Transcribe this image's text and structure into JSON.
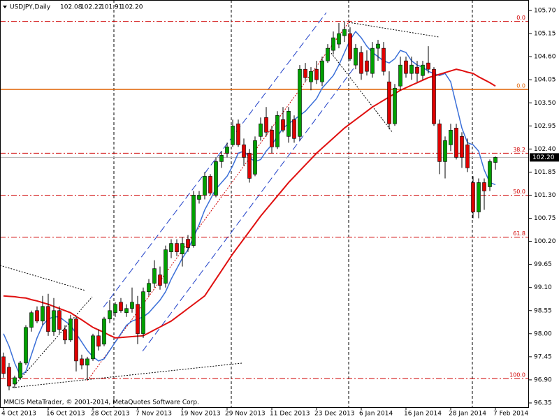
{
  "chart_data": {
    "type": "candlestick",
    "title": "USDJPY,Daily",
    "header_values": [
      "102.08",
      "102.22",
      "101.91",
      "102.20"
    ],
    "footer": "MMCIS MetaTrader, © 2001-2014, MetaQuotes Software Corp.",
    "up_color": "#00a000",
    "down_color": "#e00000",
    "categories": [
      "4 Oct 2013",
      null,
      null,
      null,
      null,
      null,
      null,
      null,
      "16 Oct 2013",
      null,
      null,
      null,
      null,
      null,
      null,
      null,
      "28 Oct 2013",
      null,
      null,
      null,
      null,
      null,
      null,
      null,
      "7 Nov 2013",
      null,
      null,
      null,
      null,
      null,
      null,
      null,
      "19 Nov 2013",
      null,
      null,
      null,
      null,
      null,
      null,
      null,
      "29 Nov 2013",
      null,
      null,
      null,
      null,
      null,
      null,
      null,
      "11 Dec 2013",
      null,
      null,
      null,
      null,
      null,
      null,
      null,
      "23 Dec 2013",
      null,
      null,
      null,
      null,
      null,
      null,
      null,
      "6 Jan 2014",
      null,
      null,
      null,
      null,
      null,
      null,
      null,
      "16 Jan 2014",
      null,
      null,
      null,
      null,
      null,
      null,
      null,
      "28 Jan 2014",
      null,
      null,
      null,
      null,
      null,
      null,
      null,
      "7 Feb 2014"
    ],
    "open": [
      97.45,
      97.2,
      96.8,
      96.95,
      97.3,
      98.15,
      98.55,
      98.3,
      98.65,
      98.05,
      98.55,
      98.1,
      97.85,
      98.35,
      97.4,
      97.25,
      97.4,
      97.95,
      97.75,
      98.35,
      98.5,
      98.75,
      98.5,
      98.6,
      98.7,
      98.0,
      99.0,
      99.2,
      99.4,
      99.2,
      99.95,
      100.15,
      99.9,
      100.25,
      100.1,
      101.2,
      101.3,
      101.75,
      101.3,
      102.1,
      102.3,
      102.5,
      103.0,
      102.5,
      102.3,
      101.8,
      102.7,
      103.15,
      102.85,
      102.45,
      103.1,
      102.7,
      103.1,
      102.7,
      104.3,
      104.0,
      104.3,
      104.0,
      104.5,
      104.75,
      104.9,
      105.1,
      105.15,
      104.4,
      104.7,
      104.5,
      104.2,
      104.8,
      104.8,
      104.0,
      103.0,
      103.9,
      104.5,
      104.2,
      104.35,
      104.15,
      104.45,
      104.3,
      103.0,
      102.1,
      102.5,
      102.9,
      102.7,
      102.5,
      101.6,
      100.9,
      101.6,
      101.5,
      102.08
    ],
    "high": [
      97.55,
      97.3,
      97.0,
      97.35,
      98.2,
      98.55,
      98.65,
      98.9,
      98.95,
      98.85,
      98.65,
      98.2,
      98.45,
      98.4,
      97.5,
      97.45,
      98.0,
      98.1,
      98.4,
      98.8,
      98.75,
      98.85,
      98.7,
      99.1,
      98.9,
      99.1,
      99.3,
      99.75,
      99.6,
      100.1,
      100.25,
      100.25,
      100.3,
      100.35,
      101.4,
      101.4,
      101.85,
      101.8,
      102.2,
      102.35,
      102.55,
      103.1,
      103.1,
      102.65,
      102.4,
      102.7,
      103.15,
      103.4,
      102.95,
      103.3,
      103.4,
      103.4,
      103.2,
      104.4,
      104.45,
      104.35,
      104.5,
      104.6,
      104.9,
      105.2,
      105.4,
      105.44,
      105.3,
      104.9,
      104.85,
      104.75,
      104.95,
      105.0,
      104.95,
      104.25,
      103.95,
      104.6,
      104.6,
      104.6,
      104.5,
      104.5,
      104.85,
      104.35,
      103.1,
      102.7,
      103.0,
      103.0,
      102.8,
      102.65,
      101.75,
      101.7,
      101.7,
      102.15,
      102.22
    ],
    "low": [
      96.95,
      96.65,
      96.7,
      96.9,
      97.25,
      98.05,
      98.25,
      98.2,
      97.95,
      97.95,
      98.0,
      97.75,
      97.8,
      97.1,
      97.15,
      96.9,
      97.35,
      97.6,
      97.7,
      98.25,
      98.4,
      98.5,
      98.4,
      98.5,
      97.75,
      97.9,
      98.9,
      99.1,
      99.05,
      99.1,
      99.8,
      99.85,
      99.6,
      99.95,
      100.05,
      101.1,
      101.2,
      101.3,
      101.25,
      101.95,
      102.2,
      102.45,
      102.45,
      102.0,
      101.6,
      101.75,
      102.6,
      102.7,
      102.3,
      102.4,
      102.8,
      102.55,
      102.55,
      102.6,
      104.0,
      103.8,
      103.95,
      103.9,
      104.45,
      104.65,
      104.8,
      104.95,
      104.5,
      104.3,
      104.05,
      104.15,
      104.1,
      104.5,
      104.15,
      102.87,
      102.95,
      103.8,
      104.1,
      104.05,
      104.0,
      104.05,
      104.2,
      102.95,
      101.8,
      101.7,
      102.35,
      102.15,
      101.95,
      101.85,
      100.75,
      100.75,
      100.95,
      101.4,
      101.91
    ],
    "close": [
      97.05,
      96.75,
      96.95,
      97.3,
      98.15,
      98.5,
      98.3,
      98.65,
      98.05,
      98.55,
      98.1,
      97.85,
      98.35,
      97.35,
      97.25,
      97.4,
      97.95,
      97.7,
      98.35,
      98.55,
      98.7,
      98.55,
      98.6,
      98.75,
      98.0,
      99.0,
      99.2,
      99.55,
      99.15,
      100.0,
      100.15,
      99.95,
      100.15,
      100.05,
      101.3,
      101.3,
      101.75,
      101.35,
      102.1,
      102.25,
      102.45,
      102.95,
      102.5,
      102.2,
      101.7,
      102.6,
      103.0,
      102.8,
      102.45,
      103.2,
      102.85,
      103.3,
      102.65,
      104.3,
      104.1,
      104.25,
      104.05,
      104.5,
      104.8,
      105.05,
      105.15,
      105.25,
      104.55,
      104.8,
      104.2,
      104.25,
      104.8,
      104.9,
      104.25,
      103.0,
      103.85,
      104.4,
      104.2,
      104.4,
      104.2,
      104.4,
      104.3,
      103.0,
      102.1,
      102.6,
      102.85,
      102.2,
      102.2,
      101.95,
      100.9,
      101.6,
      101.4,
      102.1,
      102.2
    ],
    "overlays": [
      {
        "color": "#3a6fd8",
        "values": [
          98.0,
          97.7,
          97.3,
          97.0,
          97.1,
          97.5,
          97.9,
          98.2,
          98.35,
          98.4,
          98.4,
          98.3,
          98.2,
          98.0,
          97.8,
          97.6,
          97.45,
          97.35,
          97.4,
          97.6,
          97.8,
          98.0,
          98.2,
          98.3,
          98.35,
          98.4,
          98.5,
          98.65,
          98.8,
          99.0,
          99.3,
          99.55,
          99.8,
          100.0,
          100.3,
          100.6,
          100.95,
          101.2,
          101.45,
          101.6,
          101.75,
          102.0,
          102.3,
          102.35,
          102.2,
          102.1,
          102.15,
          102.35,
          102.5,
          102.7,
          102.9,
          103.0,
          103.1,
          103.2,
          103.3,
          103.45,
          103.6,
          103.85,
          104.0,
          104.15,
          104.4,
          104.7,
          105.0,
          105.2,
          105.05,
          104.85,
          104.7,
          104.6,
          104.5,
          104.45,
          104.55,
          104.75,
          104.7,
          104.5,
          104.4,
          104.35,
          104.25,
          104.2,
          104.15,
          104.2,
          104.0,
          103.45,
          102.9,
          102.55,
          102.5,
          102.35,
          101.9,
          101.6,
          101.55
        ]
      },
      {
        "color": "#e01010",
        "values": [
          98.9,
          98.89,
          98.88,
          98.86,
          98.85,
          98.81,
          98.78,
          98.74,
          98.7,
          98.65,
          98.6,
          98.55,
          98.5,
          98.41,
          98.33,
          98.24,
          98.15,
          98.09,
          98.03,
          97.96,
          97.9,
          97.91,
          97.92,
          97.93,
          97.94,
          97.95,
          98.02,
          98.09,
          98.16,
          98.23,
          98.3,
          98.4,
          98.5,
          98.6,
          98.7,
          98.8,
          98.9,
          99.1,
          99.3,
          99.5,
          99.7,
          99.9,
          100.08,
          100.26,
          100.44,
          100.62,
          100.8,
          100.96,
          101.12,
          101.28,
          101.44,
          101.6,
          101.74,
          101.88,
          102.02,
          102.16,
          102.3,
          102.42,
          102.54,
          102.66,
          102.78,
          102.9,
          103.0,
          103.1,
          103.2,
          103.3,
          103.4,
          103.48,
          103.56,
          103.64,
          103.72,
          103.8,
          103.86,
          103.92,
          103.98,
          104.04,
          104.1,
          104.14,
          104.18,
          104.22,
          104.26,
          104.3,
          104.27,
          104.23,
          104.2,
          104.12,
          104.05,
          103.98,
          103.9
        ]
      }
    ],
    "fib_color": "#d00000",
    "fib_levels": [
      {
        "value": 105.44,
        "label": "0.0"
      },
      {
        "value": 102.3,
        "label": "38.2"
      },
      {
        "value": 101.3,
        "label": "50.0"
      },
      {
        "value": 100.3,
        "label": "61.8"
      },
      {
        "value": 96.93,
        "label": "100.0"
      }
    ],
    "hline": {
      "value": 103.82,
      "label": "0.0",
      "color": "#e06000"
    },
    "current_price": {
      "value": 102.2,
      "label": "102.20"
    },
    "ylim": [
      96.25,
      105.95
    ],
    "yticks": [
      {
        "value": 105.7,
        "label": "105.70"
      },
      {
        "value": 105.15,
        "label": "105.15"
      },
      {
        "value": 104.6,
        "label": "104.60"
      },
      {
        "value": 104.05,
        "label": "104.05"
      },
      {
        "value": 103.5,
        "label": "103.50"
      },
      {
        "value": 102.95,
        "label": "102.95"
      },
      {
        "value": 102.4,
        "label": "102.40"
      },
      {
        "value": 101.85,
        "label": "101.85"
      },
      {
        "value": 101.3,
        "label": "101.30"
      },
      {
        "value": 100.75,
        "label": "100.75"
      },
      {
        "value": 100.2,
        "label": "100.20"
      },
      {
        "value": 99.65,
        "label": "99.65"
      },
      {
        "value": 99.1,
        "label": "99.10"
      },
      {
        "value": 98.55,
        "label": "98.55"
      },
      {
        "value": 98.0,
        "label": "98.00"
      },
      {
        "value": 97.45,
        "label": "97.45"
      },
      {
        "value": 96.9,
        "label": "96.90"
      },
      {
        "value": 96.35,
        "label": "96.35"
      }
    ]
  }
}
